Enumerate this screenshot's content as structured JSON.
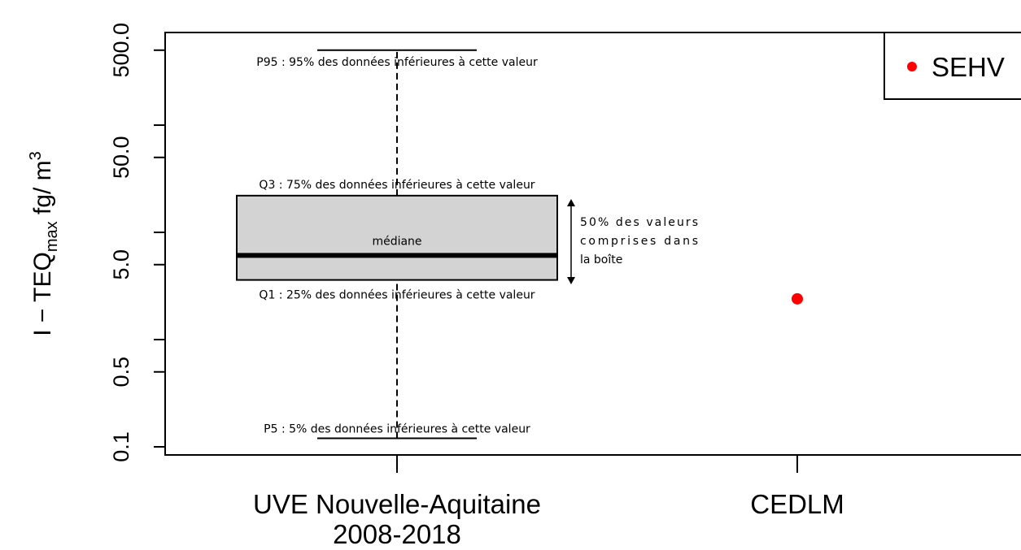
{
  "chart_data": {
    "type": "boxplot",
    "y_label": {
      "main": "I − TEQ",
      "sub": "max",
      "unit": " fg/ m",
      "sup": "3"
    },
    "categories": [
      [
        "UVE Nouvelle-Aquitaine",
        "2008-2018"
      ],
      [
        "CEDLM"
      ]
    ],
    "box": {
      "category": 0,
      "whislo": 0.12,
      "q1": 3.6,
      "med": 6.1,
      "q3": 22,
      "whishi": 500,
      "color": "#d3d3d3"
    },
    "series": [
      {
        "name": "SEHV",
        "color": "#ff0000",
        "values": [
          null,
          2.4
        ]
      }
    ],
    "log_y": true,
    "ylim": [
      0.084,
      731
    ],
    "yticks": [
      0.1,
      0.5,
      {
        "value": 5,
        "label": "5.0"
      },
      {
        "value": 50,
        "label": "50.0"
      },
      {
        "value": 500,
        "label": "500.0"
      }
    ],
    "minor_yticks": [
      1,
      10,
      100
    ],
    "legend": "upper right",
    "annotations": {
      "p95": "P95 : 95% des données inférieures à cette valeur",
      "q3": "Q3 : 75% des données inférieures à cette valeur",
      "med": "médiane",
      "q1": "Q1 : 25% des données inférieures à cette valeur",
      "p5": "P5 : 5% des données inférieures à cette valeur",
      "box_note": [
        "50% des valeurs",
        "comprises dans",
        "la boîte"
      ]
    }
  }
}
